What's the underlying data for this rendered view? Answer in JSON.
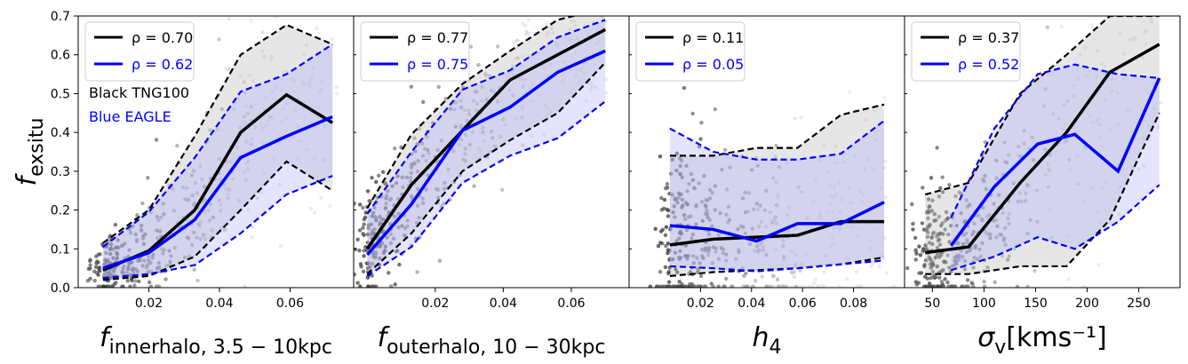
{
  "figure": {
    "ylabel_base": "f",
    "ylabel_sub": "exsitu",
    "annotations": [
      {
        "text": "Black TNG100",
        "color": "#000000"
      },
      {
        "text": "Blue EAGLE",
        "color": "#0000ff"
      }
    ]
  },
  "chart_data": [
    {
      "type": "line",
      "xlabel": {
        "base": "f",
        "sub": "innerhalo, 3.5 − 10kpc",
        "style": "italic-base"
      },
      "ylabel": "f_exsitu",
      "xlim": [
        0.0,
        0.078
      ],
      "ylim": [
        0.0,
        0.7
      ],
      "xticks": [
        "0.02",
        "0.04",
        "0.06"
      ],
      "xtick_values": [
        0.02,
        0.04,
        0.06
      ],
      "yticks": [
        "0.0",
        "0.1",
        "0.2",
        "0.3",
        "0.4",
        "0.5",
        "0.6",
        "0.7"
      ],
      "ytick_values": [
        0.0,
        0.1,
        0.2,
        0.3,
        0.4,
        0.5,
        0.6,
        0.7
      ],
      "legend": {
        "position": "top-left",
        "entries": [
          {
            "label": "ρ = 0.70",
            "color": "#000000"
          },
          {
            "label": "ρ = 0.62",
            "color": "#0000ff"
          }
        ]
      },
      "series": [
        {
          "name": "ρ = 0.70",
          "color": "#000000",
          "x": [
            0.007,
            0.02,
            0.033,
            0.046,
            0.059,
            0.072
          ],
          "median": [
            0.045,
            0.095,
            0.2,
            0.4,
            0.497,
            0.425
          ],
          "lower": [
            0.02,
            0.03,
            0.08,
            0.2,
            0.325,
            0.25
          ],
          "upper": [
            0.115,
            0.2,
            0.39,
            0.6,
            0.677,
            0.627
          ]
        },
        {
          "name": "ρ = 0.62",
          "color": "#0000ff",
          "x": [
            0.007,
            0.02,
            0.033,
            0.046,
            0.059,
            0.072
          ],
          "median": [
            0.05,
            0.09,
            0.175,
            0.335,
            0.39,
            0.44
          ],
          "lower": [
            0.025,
            0.035,
            0.058,
            0.14,
            0.24,
            0.288
          ],
          "upper": [
            0.105,
            0.195,
            0.335,
            0.505,
            0.55,
            0.627
          ]
        }
      ]
    },
    {
      "type": "line",
      "xlabel": {
        "base": "f",
        "sub": "outerhalo, 10 − 30kpc",
        "style": "italic-base"
      },
      "ylabel": "",
      "xlim": [
        -0.004,
        0.077
      ],
      "ylim": [
        0.0,
        0.7
      ],
      "xticks": [
        "0.02",
        "0.04",
        "0.06"
      ],
      "xtick_values": [
        0.02,
        0.04,
        0.06
      ],
      "yticks": [],
      "ytick_values": [],
      "legend": {
        "position": "top-left",
        "entries": [
          {
            "label": "ρ = 0.77",
            "color": "#000000"
          },
          {
            "label": "ρ = 0.75",
            "color": "#0000ff"
          }
        ]
      },
      "series": [
        {
          "name": "ρ = 0.77",
          "color": "#000000",
          "x": [
            0.0,
            0.013,
            0.028,
            0.042,
            0.056,
            0.07
          ],
          "median": [
            0.1,
            0.265,
            0.405,
            0.535,
            0.6,
            0.665
          ],
          "lower": [
            0.035,
            0.14,
            0.3,
            0.38,
            0.45,
            0.58
          ],
          "upper": [
            0.205,
            0.395,
            0.525,
            0.61,
            0.69,
            0.72
          ]
        },
        {
          "name": "ρ = 0.75",
          "color": "#0000ff",
          "x": [
            0.0,
            0.013,
            0.028,
            0.042,
            0.056,
            0.07
          ],
          "median": [
            0.085,
            0.215,
            0.405,
            0.465,
            0.555,
            0.61
          ],
          "lower": [
            0.03,
            0.105,
            0.27,
            0.34,
            0.385,
            0.48
          ],
          "upper": [
            0.19,
            0.35,
            0.51,
            0.56,
            0.645,
            0.69
          ]
        }
      ]
    },
    {
      "type": "line",
      "xlabel": {
        "base": "h",
        "sub": "4",
        "style": "italic-base"
      },
      "ylabel": "",
      "xlim": [
        -0.008,
        0.1
      ],
      "ylim": [
        0.0,
        0.7
      ],
      "xticks": [
        "0.02",
        "0.04",
        "0.06",
        "0.08"
      ],
      "xtick_values": [
        0.02,
        0.04,
        0.06,
        0.08
      ],
      "yticks": [],
      "ytick_values": [],
      "legend": {
        "position": "top-left",
        "entries": [
          {
            "label": "ρ = 0.11",
            "color": "#000000"
          },
          {
            "label": "ρ = 0.05",
            "color": "#0000ff"
          }
        ]
      },
      "series": [
        {
          "name": "ρ = 0.11",
          "color": "#000000",
          "x": [
            0.008,
            0.025,
            0.042,
            0.058,
            0.075,
            0.092
          ],
          "median": [
            0.11,
            0.125,
            0.13,
            0.135,
            0.17,
            0.17
          ],
          "lower": [
            0.03,
            0.04,
            0.045,
            0.05,
            0.06,
            0.078
          ],
          "upper": [
            0.34,
            0.34,
            0.36,
            0.36,
            0.445,
            0.472
          ]
        },
        {
          "name": "ρ = 0.05",
          "color": "#0000ff",
          "x": [
            0.008,
            0.025,
            0.042,
            0.058,
            0.075,
            0.092
          ],
          "median": [
            0.16,
            0.15,
            0.12,
            0.165,
            0.165,
            0.22
          ],
          "lower": [
            0.055,
            0.05,
            0.042,
            0.05,
            0.06,
            0.07
          ],
          "upper": [
            0.41,
            0.35,
            0.33,
            0.33,
            0.345,
            0.43
          ]
        }
      ]
    },
    {
      "type": "line",
      "xlabel": {
        "base": "σ",
        "sub": "v",
        "suffix": "[kms⁻¹]",
        "style": "italic-base"
      },
      "ylabel": "",
      "xlim": [
        23,
        290
      ],
      "ylim": [
        0.0,
        0.7
      ],
      "xticks": [
        "50",
        "100",
        "150",
        "200",
        "250"
      ],
      "xtick_values": [
        50,
        100,
        150,
        200,
        250
      ],
      "yticks": [],
      "ytick_values": [],
      "legend": {
        "position": "top-left",
        "entries": [
          {
            "label": "ρ = 0.37",
            "color": "#000000"
          },
          {
            "label": "ρ = 0.52",
            "color": "#0000ff"
          }
        ]
      },
      "series": [
        {
          "name": "ρ = 0.37",
          "color": "#000000",
          "x": [
            43,
            85,
            135,
            180,
            222,
            270
          ],
          "median": [
            0.09,
            0.105,
            0.27,
            0.4,
            0.555,
            0.627
          ],
          "lower": [
            0.035,
            0.035,
            0.055,
            0.055,
            0.175,
            0.45
          ],
          "upper": [
            0.24,
            0.27,
            0.5,
            0.6,
            0.7,
            0.7
          ]
        },
        {
          "name": "ρ = 0.52",
          "color": "#0000ff",
          "x": [
            68,
            110,
            152,
            188,
            230,
            270
          ],
          "median": [
            0.108,
            0.26,
            0.37,
            0.395,
            0.3,
            0.54
          ],
          "lower": [
            0.045,
            0.08,
            0.13,
            0.1,
            0.17,
            0.265
          ],
          "upper": [
            0.18,
            0.41,
            0.55,
            0.575,
            0.55,
            0.54
          ]
        }
      ]
    }
  ]
}
